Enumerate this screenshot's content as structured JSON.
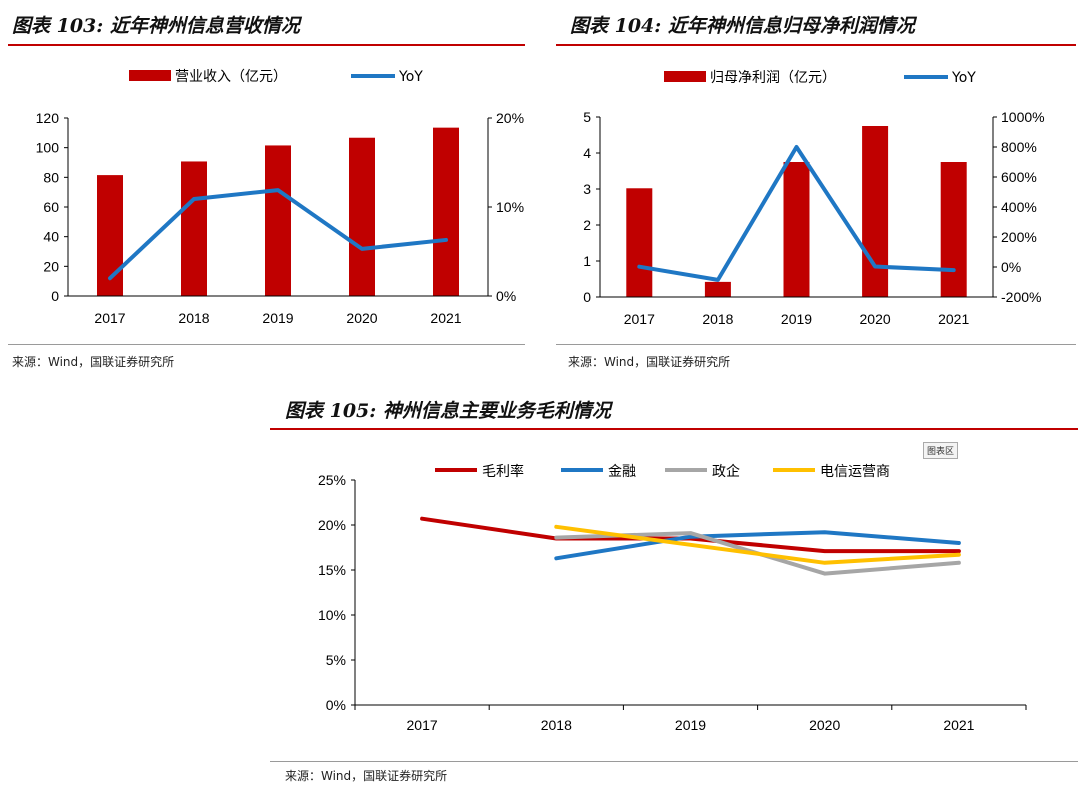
{
  "panel103": {
    "title": "图表 103:  近年神州信息营收情况",
    "source": "来源：Wind，国联证券研究所"
  },
  "panel104": {
    "title": "图表 104:  近年神州信息归母净利润情况",
    "source": "来源：Wind，国联证券研究所"
  },
  "panel105": {
    "title": "图表 105:  神州信息主要业务毛利情况",
    "source": "来源：Wind，国联证券研究所",
    "chart_area_label": "图表区"
  },
  "colors": {
    "bar": "#c00000",
    "yoy": "#1f77c4",
    "gross": "#c00000",
    "finance": "#1f77c4",
    "gov": "#a6a6a6",
    "telecom": "#ffc000",
    "rule": "#c00000"
  },
  "chart_data": [
    {
      "id": "revenue",
      "type": "bar+line",
      "title": "近年神州信息营收情况",
      "categories": [
        "2017",
        "2018",
        "2019",
        "2020",
        "2021"
      ],
      "series": [
        {
          "name": "营业收入（亿元）",
          "axis": "left",
          "type": "bar",
          "values": [
            81.5,
            90.7,
            101.5,
            106.7,
            113.5
          ]
        },
        {
          "name": "YoY",
          "axis": "right",
          "type": "line",
          "values": [
            0.02,
            0.109,
            0.119,
            0.053,
            0.063
          ]
        }
      ],
      "left_axis": {
        "min": 0,
        "max": 120,
        "ticks": [
          "0",
          "20",
          "40",
          "60",
          "80",
          "100",
          "120"
        ]
      },
      "right_axis": {
        "min": 0,
        "max": 0.2,
        "ticks": [
          "0%",
          "10%",
          "20%"
        ]
      }
    },
    {
      "id": "net_profit",
      "type": "bar+line",
      "title": "近年神州信息归母净利润情况",
      "categories": [
        "2017",
        "2018",
        "2019",
        "2020",
        "2021"
      ],
      "series": [
        {
          "name": "归母净利润（亿元）",
          "axis": "left",
          "type": "bar",
          "values": [
            3.02,
            0.42,
            3.75,
            4.75,
            3.75
          ]
        },
        {
          "name": "YoY",
          "axis": "right",
          "type": "line",
          "values": [
            0.02,
            -0.86,
            8.0,
            0.03,
            -0.21
          ]
        }
      ],
      "left_axis": {
        "min": 0,
        "max": 5,
        "ticks": [
          "0",
          "1",
          "2",
          "3",
          "4",
          "5"
        ]
      },
      "right_axis": {
        "min": -2,
        "max": 10,
        "ticks": [
          "-200%",
          "0%",
          "200%",
          "400%",
          "600%",
          "800%",
          "1000%"
        ]
      }
    },
    {
      "id": "gross_margin",
      "type": "line",
      "title": "神州信息主要业务毛利情况",
      "categories": [
        "2017",
        "2018",
        "2019",
        "2020",
        "2021"
      ],
      "series": [
        {
          "name": "毛利率",
          "values": [
            0.207,
            0.185,
            0.185,
            0.171,
            0.171
          ]
        },
        {
          "name": "金融",
          "values": [
            null,
            0.163,
            0.187,
            0.192,
            0.18
          ]
        },
        {
          "name": "政企",
          "values": [
            null,
            0.186,
            0.191,
            0.146,
            0.158
          ]
        },
        {
          "name": "电信运营商",
          "values": [
            null,
            0.198,
            0.178,
            0.158,
            0.167
          ]
        }
      ],
      "y_axis": {
        "min": 0,
        "max": 0.25,
        "ticks": [
          "0%",
          "5%",
          "10%",
          "15%",
          "20%",
          "25%"
        ]
      }
    }
  ]
}
